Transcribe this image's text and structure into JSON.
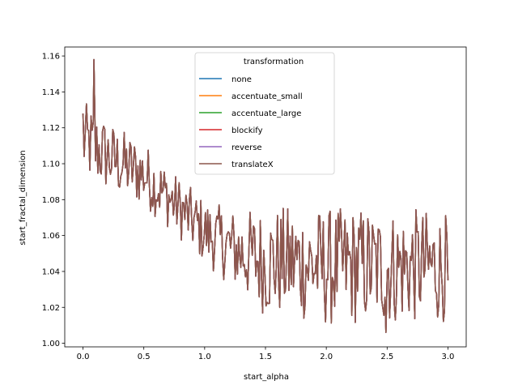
{
  "chart_data": {
    "type": "line",
    "title": "",
    "xlabel": "start_alpha",
    "ylabel": "start_fractal_dimension",
    "xlim": [
      -0.15,
      3.15
    ],
    "ylim": [
      0.998,
      1.165
    ],
    "xticks": [
      0.0,
      0.5,
      1.0,
      1.5,
      2.0,
      2.5,
      3.0
    ],
    "xtick_labels": [
      "0.0",
      "0.5",
      "1.0",
      "1.5",
      "2.0",
      "2.5",
      "3.0"
    ],
    "yticks": [
      1.0,
      1.02,
      1.04,
      1.06,
      1.08,
      1.1,
      1.12,
      1.14,
      1.16
    ],
    "ytick_labels": [
      "1.00",
      "1.02",
      "1.04",
      "1.06",
      "1.08",
      "1.10",
      "1.12",
      "1.14",
      "1.16"
    ],
    "grid": false,
    "legend": {
      "title": "transformation",
      "placement": "top-center",
      "entries": [
        {
          "name": "none",
          "color": "#1f77b4"
        },
        {
          "name": "accentuate_small",
          "color": "#ff7f0e"
        },
        {
          "name": "accentuate_large",
          "color": "#2ca02c"
        },
        {
          "name": "blockify",
          "color": "#d62728"
        },
        {
          "name": "reverse",
          "color": "#9467bd"
        },
        {
          "name": "translateX",
          "color": "#8c564b"
        }
      ]
    },
    "series": [
      {
        "name": "none",
        "color": "#1f77b4",
        "note_overlap": true
      },
      {
        "name": "accentuate_small",
        "color": "#ff7f0e",
        "note_overlap": true
      },
      {
        "name": "accentuate_large",
        "color": "#2ca02c",
        "note_overlap": true
      },
      {
        "name": "blockify",
        "color": "#d62728",
        "note_overlap": true
      },
      {
        "name": "reverse",
        "color": "#9467bd",
        "note_overlap": true
      },
      {
        "name": "translateX",
        "color": "#8c564b",
        "trend_x": [
          0.0,
          0.25,
          0.5,
          0.75,
          1.0,
          1.25,
          1.5,
          1.75,
          2.0,
          2.25,
          2.5,
          2.75,
          3.0
        ],
        "trend_y": [
          1.113,
          1.102,
          1.094,
          1.078,
          1.062,
          1.052,
          1.045,
          1.045,
          1.042,
          1.043,
          1.042,
          1.043,
          1.042
        ],
        "band_halfwidth": [
          0.022,
          0.02,
          0.018,
          0.017,
          0.018,
          0.022,
          0.03,
          0.032,
          0.033,
          0.033,
          0.032,
          0.032,
          0.03
        ],
        "points": 320,
        "ymax_point": [
          0.09,
          1.158
        ],
        "ymin_point": [
          2.49,
          1.006
        ]
      }
    ]
  }
}
